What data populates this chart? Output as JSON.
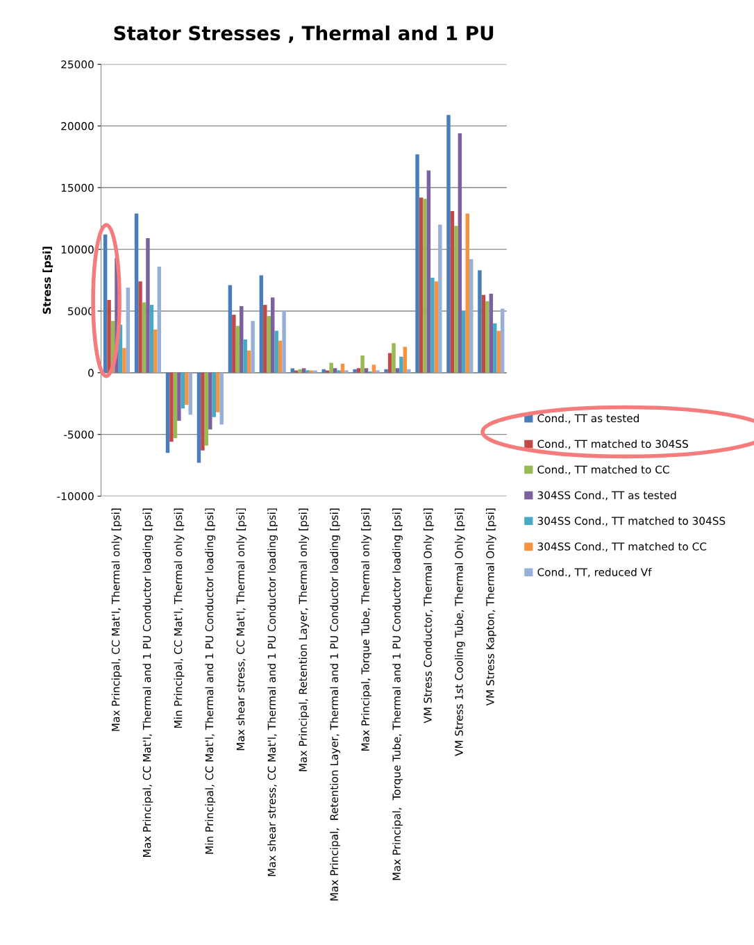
{
  "chart_data": {
    "type": "bar",
    "title": "Stator Stresses , Thermal and 1 PU",
    "ylabel": "Stress [psi]",
    "categories": [
      "Max Principal, CC Mat'l, Thermal only [psi]",
      "Max Principal, CC Mat'l, Thermal and 1 PU Conductor loading [psi]",
      "Min Principal, CC Mat'l, Thermal only [psi]",
      "Min Principal, CC Mat'l, Thermal and 1 PU Conductor loading [psi]",
      "Max shear stress, CC Mat'l, Thermal only [psi]",
      "Max shear stress, CC Mat'l, Thermal and 1 PU Conductor loading [psi]",
      "Max Principal, Retention Layer, Thermal only [psi]",
      "Max Principal,  Retention Layer, Thermal and 1 PU Conductor loading [psi]",
      "Max Principal, Torque Tube, Thermal only [psi]",
      "Max Principal,  Torque Tube, Thermal and 1 PU Conductor loading [psi]",
      "VM Stress Conductor, Thermal Only [psi]",
      "VM Stress 1st Cooling Tube, Thermal Only [psi]",
      "VM Stress Kapton, Thermal Only [psi]"
    ],
    "series": [
      {
        "name": "Cond., TT as tested",
        "color": "#4a7ebb",
        "values": [
          11200,
          12900,
          -6500,
          -7300,
          7100,
          7900,
          350,
          280,
          280,
          280,
          17700,
          20900,
          8300
        ]
      },
      {
        "name": "Cond., TT matched to 304SS",
        "color": "#be4b48",
        "values": [
          5900,
          7400,
          -5600,
          -6300,
          4700,
          5500,
          180,
          180,
          370,
          1600,
          14200,
          13100,
          6300
        ]
      },
      {
        "name": "Cond., TT matched to CC",
        "color": "#98b954",
        "values": [
          4200,
          5700,
          -5300,
          -5900,
          3800,
          4600,
          280,
          800,
          1400,
          2400,
          14100,
          11900,
          5800
        ]
      },
      {
        "name": "304SS Cond., TT as tested",
        "color": "#7d60a0",
        "values": [
          9300,
          10900,
          -3900,
          -4600,
          5400,
          6100,
          370,
          370,
          370,
          370,
          16400,
          19400,
          6400
        ]
      },
      {
        "name": "304SS Cond., TT matched to 304SS",
        "color": "#46aac5",
        "values": [
          3900,
          5500,
          -2900,
          -3600,
          2700,
          3400,
          200,
          200,
          100,
          1300,
          7700,
          5000,
          4000
        ]
      },
      {
        "name": "304SS Cond., TT matched to CC",
        "color": "#f69240",
        "values": [
          2000,
          3500,
          -2600,
          -3200,
          1800,
          2600,
          180,
          740,
          650,
          2100,
          7400,
          12900,
          3400
        ]
      },
      {
        "name": "Cond., TT, reduced Vf",
        "color": "#97b0d8",
        "values": [
          6900,
          8600,
          -3400,
          -4200,
          4200,
          5000,
          180,
          200,
          200,
          280,
          12000,
          9200,
          5200
        ]
      }
    ],
    "ylim": [
      -10000,
      25000
    ],
    "yticks": [
      -10000,
      -5000,
      0,
      5000,
      10000,
      15000,
      20000,
      25000
    ],
    "grid": "y",
    "legend": "right"
  }
}
